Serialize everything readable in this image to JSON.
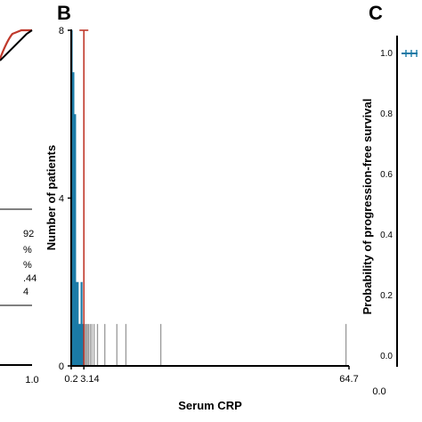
{
  "panel_a": {
    "stats": [
      "92",
      "%",
      "%",
      ".44",
      "4"
    ],
    "x_tick_right": "1.0",
    "curve_color": "#c0392b"
  },
  "panel_b": {
    "label": "B",
    "ylabel": "Number of patients",
    "xlabel": "Serum CRP",
    "y_ticks": [
      "0",
      "4",
      "8"
    ],
    "x_ticks": [
      "0.2",
      "3.14",
      "64.7"
    ],
    "cutoff_color": "#c0392b",
    "bar_color": "#1a7aa6",
    "thin_bar_color": "#999999"
  },
  "panel_c": {
    "label": "C",
    "ylabel": "Probability of progression-free survival",
    "y_ticks": [
      "0.0",
      "0.2",
      "0.4",
      "0.6",
      "0.8",
      "1.0"
    ],
    "x_tick_left": "0.0",
    "curve_color": "#1a7aa6"
  },
  "chart_data": [
    {
      "type": "bar",
      "title": "",
      "xlabel": "Serum CRP",
      "ylabel": "Number of patients",
      "xlim": [
        0.2,
        64.7
      ],
      "ylim": [
        0,
        8
      ],
      "cutoff": 3.14,
      "x": [
        0.3,
        0.5,
        0.7,
        0.9,
        1.1,
        1.3,
        1.5,
        1.7,
        1.9,
        2.1,
        2.3,
        2.6,
        2.9,
        3.3,
        3.6,
        3.9,
        4.2,
        4.6,
        5.0,
        5.5,
        6.3,
        8.0,
        10.8,
        12.9,
        21.0,
        64.0
      ],
      "values": [
        8,
        2,
        7,
        2,
        6,
        2,
        1,
        2,
        1,
        1,
        1,
        2,
        1,
        1,
        1,
        1,
        1,
        1,
        1,
        1,
        1,
        1,
        1,
        1,
        1,
        1
      ]
    },
    {
      "type": "line",
      "title": "",
      "ylabel": "Probability of progression-free survival",
      "ylim": [
        0.0,
        1.0
      ],
      "x": [
        0.0,
        0.1,
        0.2,
        0.3
      ],
      "y": [
        1.0,
        1.0,
        1.0,
        1.0
      ]
    }
  ]
}
